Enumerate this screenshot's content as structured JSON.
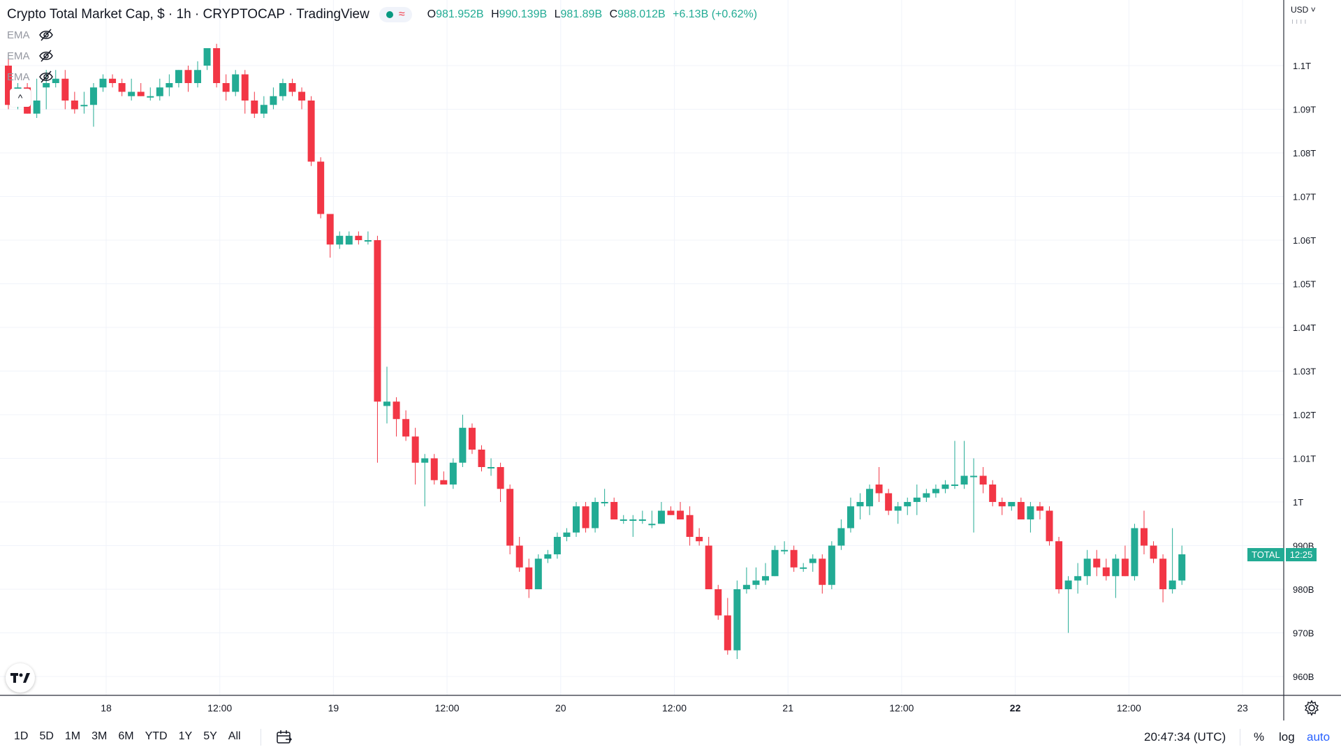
{
  "header": {
    "title": "Crypto Total Market Cap, $ · 1h · CRYPTOCAP · TradingView",
    "ohlc": {
      "o_label": "O",
      "o_value": "981.952B",
      "h_label": "H",
      "h_value": "990.139B",
      "l_label": "L",
      "l_value": "981.89B",
      "c_label": "C",
      "c_value": "988.012B",
      "change": "+6.13B (+0.62%)"
    }
  },
  "indicators": [
    {
      "label": "EMA",
      "icon": "eye-hidden-icon"
    },
    {
      "label": "EMA",
      "icon": "eye-hidden-icon"
    },
    {
      "label": "EMA",
      "icon": "eye-hidden-icon"
    }
  ],
  "price_axis": {
    "currency": "USD",
    "tick_labels": [
      "1.1T",
      "1.09T",
      "1.08T",
      "1.07T",
      "1.06T",
      "1.05T",
      "1.04T",
      "1.03T",
      "1.02T",
      "1.01T",
      "1T",
      "990B",
      "980B",
      "970B",
      "960B"
    ],
    "last_price_label": "TOTAL",
    "last_price_countdown": "12:25"
  },
  "time_axis": {
    "tick_labels": [
      "18",
      "12:00",
      "19",
      "12:00",
      "20",
      "12:00",
      "21",
      "12:00",
      "22",
      "12:00",
      "23"
    ]
  },
  "bottom_bar": {
    "ranges": [
      "1D",
      "5D",
      "1M",
      "3M",
      "6M",
      "YTD",
      "1Y",
      "5Y",
      "All"
    ],
    "clock": "20:47:34 (UTC)",
    "percent_label": "%",
    "log_label": "log",
    "auto_label": "auto"
  },
  "colors": {
    "up": "#22ab94",
    "down": "#f23645",
    "grid": "#f0f3fa",
    "axis_text": "#131722"
  },
  "chart_data": {
    "type": "candlestick",
    "ylim": [
      958,
      1104
    ],
    "x_ticks": [
      "18",
      "12:00",
      "19",
      "12:00",
      "20",
      "12:00",
      "21",
      "12:00",
      "22",
      "12:00",
      "23"
    ],
    "y_ticks": [
      1100,
      1090,
      1080,
      1070,
      1060,
      1050,
      1040,
      1030,
      1020,
      1010,
      1000,
      990,
      980,
      970,
      960
    ],
    "y_unit": "B",
    "candles": [
      {
        "o": 1100,
        "h": 1102,
        "l": 1090,
        "c": 1091
      },
      {
        "o": 1091,
        "h": 1096,
        "l": 1090,
        "c": 1095
      },
      {
        "o": 1095,
        "h": 1096,
        "l": 1089,
        "c": 1089
      },
      {
        "o": 1089,
        "h": 1097,
        "l": 1088,
        "c": 1092
      },
      {
        "o": 1095,
        "h": 1099,
        "l": 1090,
        "c": 1096
      },
      {
        "o": 1096,
        "h": 1099,
        "l": 1095,
        "c": 1097
      },
      {
        "o": 1097,
        "h": 1099,
        "l": 1090,
        "c": 1092
      },
      {
        "o": 1092,
        "h": 1094,
        "l": 1089,
        "c": 1090
      },
      {
        "o": 1091,
        "h": 1094,
        "l": 1089,
        "c": 1091
      },
      {
        "o": 1091,
        "h": 1096,
        "l": 1086,
        "c": 1095
      },
      {
        "o": 1095,
        "h": 1098,
        "l": 1094,
        "c": 1097
      },
      {
        "o": 1097,
        "h": 1098,
        "l": 1095,
        "c": 1096
      },
      {
        "o": 1096,
        "h": 1097,
        "l": 1093,
        "c": 1094
      },
      {
        "o": 1093,
        "h": 1097,
        "l": 1092,
        "c": 1094
      },
      {
        "o": 1094,
        "h": 1096,
        "l": 1093,
        "c": 1093
      },
      {
        "o": 1093,
        "h": 1095,
        "l": 1092,
        "c": 1093
      },
      {
        "o": 1093,
        "h": 1097,
        "l": 1092,
        "c": 1095
      },
      {
        "o": 1095,
        "h": 1098,
        "l": 1093,
        "c": 1096
      },
      {
        "o": 1096,
        "h": 1099,
        "l": 1095,
        "c": 1099
      },
      {
        "o": 1099,
        "h": 1100,
        "l": 1094,
        "c": 1096
      },
      {
        "o": 1096,
        "h": 1101,
        "l": 1095,
        "c": 1099
      },
      {
        "o": 1100,
        "h": 1104,
        "l": 1099,
        "c": 1104
      },
      {
        "o": 1104,
        "h": 1105,
        "l": 1095,
        "c": 1096
      },
      {
        "o": 1096,
        "h": 1098,
        "l": 1092,
        "c": 1094
      },
      {
        "o": 1094,
        "h": 1099,
        "l": 1093,
        "c": 1098
      },
      {
        "o": 1098,
        "h": 1099,
        "l": 1089,
        "c": 1092
      },
      {
        "o": 1092,
        "h": 1094,
        "l": 1088,
        "c": 1089
      },
      {
        "o": 1089,
        "h": 1093,
        "l": 1088,
        "c": 1091
      },
      {
        "o": 1091,
        "h": 1095,
        "l": 1090,
        "c": 1093
      },
      {
        "o": 1093,
        "h": 1097,
        "l": 1092,
        "c": 1096
      },
      {
        "o": 1096,
        "h": 1097,
        "l": 1093,
        "c": 1094
      },
      {
        "o": 1094,
        "h": 1095,
        "l": 1090,
        "c": 1092
      },
      {
        "o": 1092,
        "h": 1093,
        "l": 1077,
        "c": 1078
      },
      {
        "o": 1078,
        "h": 1079,
        "l": 1065,
        "c": 1066
      },
      {
        "o": 1066,
        "h": 1066,
        "l": 1056,
        "c": 1059
      },
      {
        "o": 1059,
        "h": 1062,
        "l": 1058,
        "c": 1061
      },
      {
        "o": 1059,
        "h": 1062,
        "l": 1059,
        "c": 1061
      },
      {
        "o": 1061,
        "h": 1062,
        "l": 1059,
        "c": 1060
      },
      {
        "o": 1060,
        "h": 1062,
        "l": 1059,
        "c": 1060
      },
      {
        "o": 1060,
        "h": 1061,
        "l": 1009,
        "c": 1023
      },
      {
        "o": 1022,
        "h": 1031,
        "l": 1018,
        "c": 1023
      },
      {
        "o": 1023,
        "h": 1024,
        "l": 1015,
        "c": 1019
      },
      {
        "o": 1019,
        "h": 1021,
        "l": 1014,
        "c": 1015
      },
      {
        "o": 1015,
        "h": 1017,
        "l": 1004,
        "c": 1009
      },
      {
        "o": 1009,
        "h": 1011,
        "l": 999,
        "c": 1010
      },
      {
        "o": 1010,
        "h": 1011,
        "l": 1004,
        "c": 1005
      },
      {
        "o": 1005,
        "h": 1007,
        "l": 1004,
        "c": 1004
      },
      {
        "o": 1004,
        "h": 1010,
        "l": 1003,
        "c": 1009
      },
      {
        "o": 1009,
        "h": 1020,
        "l": 1008,
        "c": 1017
      },
      {
        "o": 1017,
        "h": 1018,
        "l": 1011,
        "c": 1012
      },
      {
        "o": 1012,
        "h": 1013,
        "l": 1007,
        "c": 1008
      },
      {
        "o": 1008,
        "h": 1010,
        "l": 1006,
        "c": 1008
      },
      {
        "o": 1008,
        "h": 1009,
        "l": 1000,
        "c": 1003
      },
      {
        "o": 1003,
        "h": 1004,
        "l": 988,
        "c": 990
      },
      {
        "o": 990,
        "h": 992,
        "l": 984,
        "c": 985
      },
      {
        "o": 985,
        "h": 987,
        "l": 978,
        "c": 980
      },
      {
        "o": 980,
        "h": 988,
        "l": 980,
        "c": 987
      },
      {
        "o": 987,
        "h": 989,
        "l": 986,
        "c": 988
      },
      {
        "o": 988,
        "h": 993,
        "l": 987,
        "c": 992
      },
      {
        "o": 992,
        "h": 994,
        "l": 991,
        "c": 993
      },
      {
        "o": 993,
        "h": 1000,
        "l": 992,
        "c": 999
      },
      {
        "o": 999,
        "h": 1000,
        "l": 993,
        "c": 994
      },
      {
        "o": 994,
        "h": 1001,
        "l": 993,
        "c": 1000
      },
      {
        "o": 1000,
        "h": 1003,
        "l": 999,
        "c": 1000
      },
      {
        "o": 1000,
        "h": 1001,
        "l": 996,
        "c": 996
      },
      {
        "o": 996,
        "h": 997,
        "l": 995,
        "c": 996
      },
      {
        "o": 996,
        "h": 997,
        "l": 992,
        "c": 996
      },
      {
        "o": 996,
        "h": 998,
        "l": 995,
        "c": 996
      },
      {
        "o": 995,
        "h": 998,
        "l": 994,
        "c": 995
      },
      {
        "o": 995,
        "h": 1000,
        "l": 995,
        "c": 998
      },
      {
        "o": 998,
        "h": 999,
        "l": 997,
        "c": 997
      },
      {
        "o": 998,
        "h": 1000,
        "l": 996,
        "c": 996
      },
      {
        "o": 997,
        "h": 999,
        "l": 990,
        "c": 992
      },
      {
        "o": 992,
        "h": 994,
        "l": 990,
        "c": 991
      },
      {
        "o": 990,
        "h": 992,
        "l": 980,
        "c": 980
      },
      {
        "o": 980,
        "h": 981,
        "l": 973,
        "c": 974
      },
      {
        "o": 974,
        "h": 978,
        "l": 965,
        "c": 966
      },
      {
        "o": 966,
        "h": 982,
        "l": 964,
        "c": 980
      },
      {
        "o": 980,
        "h": 985,
        "l": 979,
        "c": 981
      },
      {
        "o": 981,
        "h": 985,
        "l": 980,
        "c": 982
      },
      {
        "o": 982,
        "h": 986,
        "l": 981,
        "c": 983
      },
      {
        "o": 983,
        "h": 990,
        "l": 983,
        "c": 989
      },
      {
        "o": 989,
        "h": 991,
        "l": 988,
        "c": 989
      },
      {
        "o": 989,
        "h": 990,
        "l": 984,
        "c": 985
      },
      {
        "o": 985,
        "h": 986,
        "l": 984,
        "c": 985
      },
      {
        "o": 986,
        "h": 988,
        "l": 984,
        "c": 987
      },
      {
        "o": 987,
        "h": 988,
        "l": 979,
        "c": 981
      },
      {
        "o": 981,
        "h": 991,
        "l": 980,
        "c": 990
      },
      {
        "o": 990,
        "h": 996,
        "l": 989,
        "c": 994
      },
      {
        "o": 994,
        "h": 1001,
        "l": 993,
        "c": 999
      },
      {
        "o": 999,
        "h": 1002,
        "l": 996,
        "c": 1000
      },
      {
        "o": 999,
        "h": 1004,
        "l": 997,
        "c": 1003
      },
      {
        "o": 1004,
        "h": 1008,
        "l": 1000,
        "c": 1002
      },
      {
        "o": 1002,
        "h": 1003,
        "l": 997,
        "c": 998
      },
      {
        "o": 998,
        "h": 1000,
        "l": 995,
        "c": 999
      },
      {
        "o": 999,
        "h": 1001,
        "l": 997,
        "c": 1000
      },
      {
        "o": 1000,
        "h": 1004,
        "l": 997,
        "c": 1001
      },
      {
        "o": 1001,
        "h": 1003,
        "l": 1000,
        "c": 1002
      },
      {
        "o": 1002,
        "h": 1004,
        "l": 1001,
        "c": 1003
      },
      {
        "o": 1003,
        "h": 1005,
        "l": 1002,
        "c": 1004
      },
      {
        "o": 1004,
        "h": 1014,
        "l": 1003,
        "c": 1004
      },
      {
        "o": 1004,
        "h": 1014,
        "l": 1003,
        "c": 1006
      },
      {
        "o": 1006,
        "h": 1010,
        "l": 993,
        "c": 1006
      },
      {
        "o": 1006,
        "h": 1008,
        "l": 1002,
        "c": 1004
      },
      {
        "o": 1004,
        "h": 1005,
        "l": 999,
        "c": 1000
      },
      {
        "o": 1000,
        "h": 1001,
        "l": 997,
        "c": 999
      },
      {
        "o": 999,
        "h": 1000,
        "l": 998,
        "c": 1000
      },
      {
        "o": 1000,
        "h": 1001,
        "l": 996,
        "c": 996
      },
      {
        "o": 996,
        "h": 1000,
        "l": 993,
        "c": 999
      },
      {
        "o": 999,
        "h": 1000,
        "l": 996,
        "c": 998
      },
      {
        "o": 998,
        "h": 999,
        "l": 990,
        "c": 991
      },
      {
        "o": 991,
        "h": 992,
        "l": 979,
        "c": 980
      },
      {
        "o": 980,
        "h": 983,
        "l": 970,
        "c": 982
      },
      {
        "o": 982,
        "h": 986,
        "l": 979,
        "c": 983
      },
      {
        "o": 983,
        "h": 989,
        "l": 981,
        "c": 987
      },
      {
        "o": 987,
        "h": 989,
        "l": 983,
        "c": 985
      },
      {
        "o": 985,
        "h": 987,
        "l": 982,
        "c": 983
      },
      {
        "o": 983,
        "h": 988,
        "l": 978,
        "c": 987
      },
      {
        "o": 987,
        "h": 990,
        "l": 983,
        "c": 983
      },
      {
        "o": 983,
        "h": 995,
        "l": 982,
        "c": 994
      },
      {
        "o": 994,
        "h": 998,
        "l": 988,
        "c": 990
      },
      {
        "o": 990,
        "h": 991,
        "l": 986,
        "c": 987
      },
      {
        "o": 987,
        "h": 988,
        "l": 977,
        "c": 980
      },
      {
        "o": 980,
        "h": 994,
        "l": 979,
        "c": 982
      },
      {
        "o": 982,
        "h": 990,
        "l": 981,
        "c": 988
      }
    ]
  }
}
